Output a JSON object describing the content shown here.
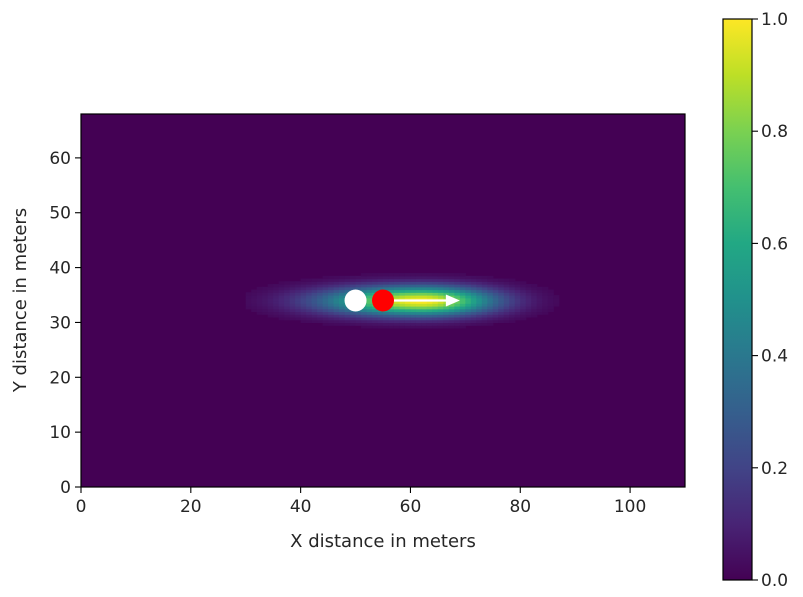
{
  "chart_data": {
    "type": "heatmap",
    "title": "",
    "xlabel": "X distance in meters",
    "ylabel": "Y distance in meters",
    "xlim": [
      0,
      110
    ],
    "ylim": [
      0,
      68
    ],
    "x_ticks": [
      "0",
      "20",
      "40",
      "60",
      "80",
      "100"
    ],
    "y_ticks": [
      "0",
      "10",
      "20",
      "30",
      "40",
      "50",
      "60"
    ],
    "colormap": "viridis",
    "colorbar": {
      "range": [
        0.0,
        1.0
      ],
      "ticks": [
        "0.0",
        "0.2",
        "0.4",
        "0.6",
        "0.8",
        "1.0"
      ]
    },
    "field": {
      "shape": "elongated gaussian",
      "peak_value": 1.0,
      "center": [
        62,
        34
      ],
      "sigma_x_left": 12,
      "sigma_x_right": 9,
      "sigma_y": 1.8
    },
    "points": [
      {
        "label": "",
        "x": 50,
        "y": 34,
        "color": "#ffffff"
      },
      {
        "label": "",
        "x": 55,
        "y": 34,
        "color": "#ff0000"
      }
    ],
    "arrow": {
      "from": [
        55,
        34
      ],
      "to": [
        69,
        34
      ],
      "color": "#ffffff"
    },
    "grid": false,
    "legend": "none"
  }
}
